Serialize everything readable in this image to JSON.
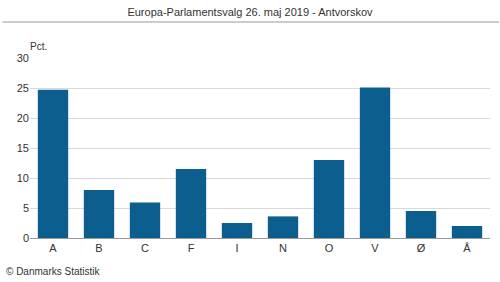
{
  "chart_data": {
    "type": "bar",
    "title": "Europa-Parlamentsvalg 26. maj 2019 - Antvorskov",
    "ylabel": "Pct.",
    "annotations": [
      "© Danmarks Statistik"
    ],
    "categories": [
      "A",
      "B",
      "C",
      "F",
      "I",
      "N",
      "O",
      "V",
      "Ø",
      "Å"
    ],
    "values": [
      24.7,
      8.0,
      5.9,
      11.5,
      2.5,
      3.6,
      13.0,
      25.1,
      4.5,
      2.0
    ],
    "color": "#0b5e8e",
    "ylim": [
      0,
      30
    ],
    "yticks": [
      0,
      5,
      10,
      15,
      20,
      25,
      30
    ],
    "grid": true
  }
}
